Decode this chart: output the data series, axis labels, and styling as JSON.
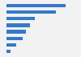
{
  "values": [
    100,
    83,
    48,
    40,
    33,
    28,
    17,
    7
  ],
  "bar_color": "#3579c8",
  "background_color": "#f2f2f2",
  "plot_background": "#f2f2f2",
  "xlim": [
    0,
    115
  ],
  "bar_height": 0.55,
  "grid_color": "#ffffff",
  "grid_linewidth": 0.8
}
